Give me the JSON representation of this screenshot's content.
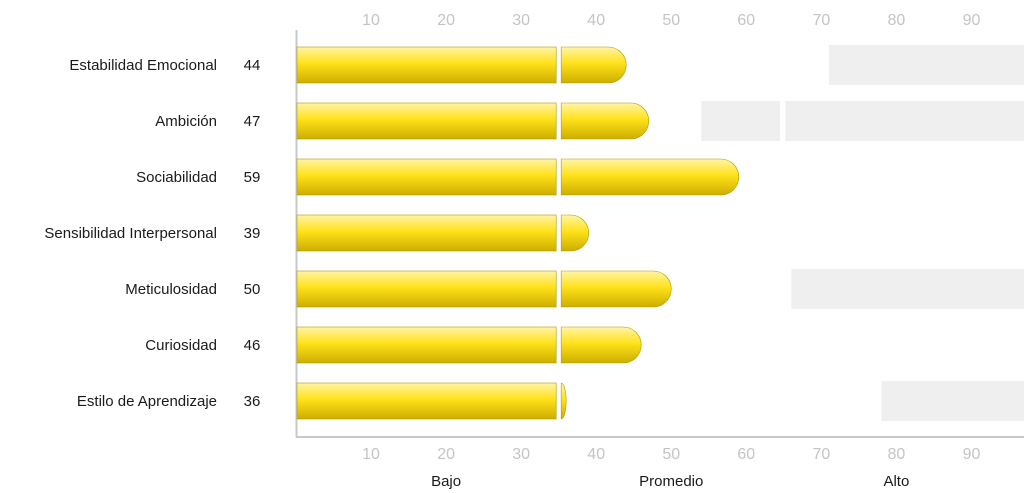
{
  "chart_data": {
    "type": "bar",
    "orientation": "horizontal",
    "categories": [
      "Estabilidad Emocional",
      "Ambición",
      "Sociabilidad",
      "Sensibilidad Interpersonal",
      "Meticulosidad",
      "Curiosidad",
      "Estilo de Aprendizaje"
    ],
    "values": [
      44,
      47,
      59,
      39,
      50,
      46,
      36
    ],
    "value_labels": [
      "44",
      "47",
      "59",
      "39",
      "50",
      "46",
      "36"
    ],
    "xlim": [
      0,
      97
    ],
    "xticks": [
      10,
      20,
      30,
      40,
      50,
      60,
      70,
      80,
      90
    ],
    "xtick_labels": [
      "10",
      "20",
      "30",
      "40",
      "50",
      "60",
      "70",
      "80",
      "90"
    ],
    "segment_split": 35,
    "bands": [
      {
        "label": "Bajo",
        "center": 20
      },
      {
        "label": "Promedio",
        "center": 50
      },
      {
        "label": "Alto",
        "center": 80
      }
    ],
    "shaded_ranges": [
      [
        [
          71,
          97
        ]
      ],
      [
        [
          54,
          64.5
        ],
        [
          65.2,
          97
        ]
      ],
      [],
      [],
      [
        [
          66,
          97
        ]
      ],
      [],
      [
        [
          78,
          97
        ]
      ]
    ],
    "grid": false,
    "legend": "none",
    "colors": {
      "bar_top": "#fff4a8",
      "bar_mid": "#ffe21a",
      "bar_bottom": "#ccae00",
      "bar_stroke": "#b59a00",
      "shade": "#efefef",
      "tick_label": "#c4c4c4",
      "axis": "#c8c8c8",
      "text": "#1a1a1a"
    }
  }
}
